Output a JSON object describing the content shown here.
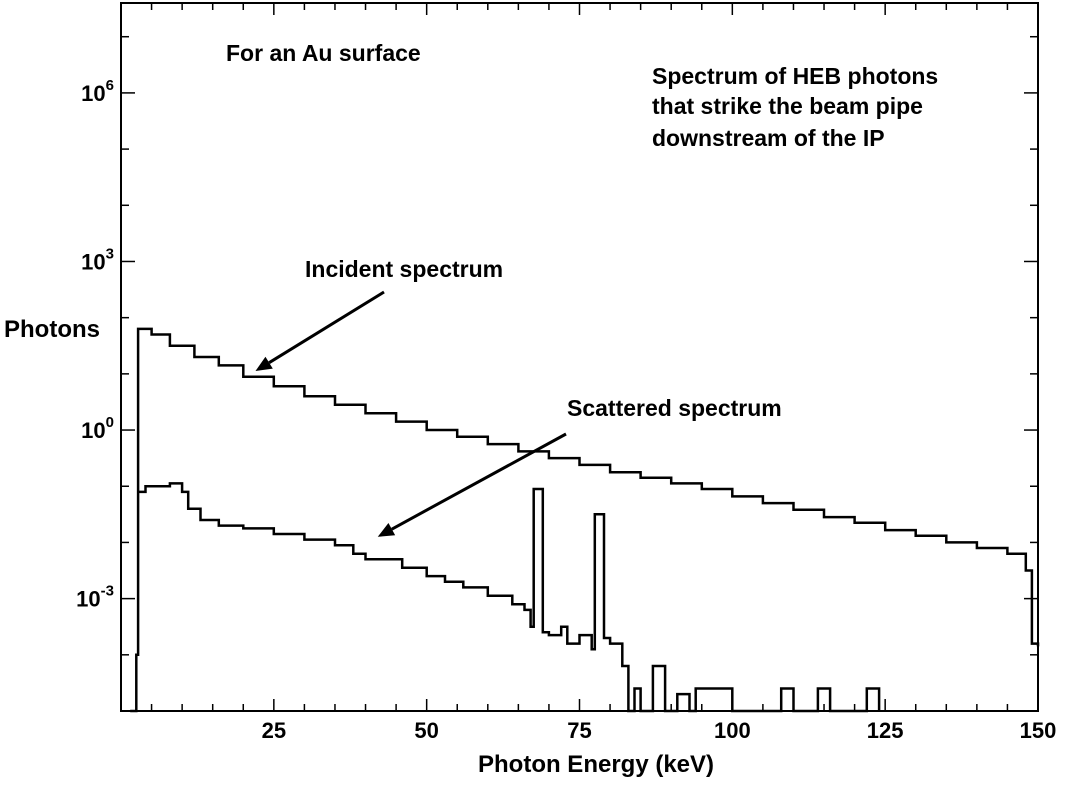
{
  "chart_data": {
    "type": "line",
    "step": true,
    "xlabel": "Photon Energy (keV)",
    "ylabel": "Photons",
    "xlim": [
      0,
      150
    ],
    "ylim_log10": [
      -5,
      7.6
    ],
    "yscale": "log",
    "grid": false,
    "x_ticks": [
      {
        "value": 25,
        "label": "25"
      },
      {
        "value": 50,
        "label": "50"
      },
      {
        "value": 75,
        "label": "75"
      },
      {
        "value": 100,
        "label": "100"
      },
      {
        "value": 125,
        "label": "125"
      },
      {
        "value": 150,
        "label": "150"
      }
    ],
    "y_ticks": [
      {
        "exp": 6,
        "base": "10",
        "sup": "6"
      },
      {
        "exp": 3,
        "base": "10",
        "sup": "3"
      },
      {
        "exp": 0,
        "base": "10",
        "sup": "0"
      },
      {
        "exp": -3,
        "base": "10",
        "sup": "-3"
      }
    ],
    "annotations": [
      {
        "text": "For an Au surface"
      },
      {
        "text": "Spectrum of HEB photons"
      },
      {
        "text": "that strike the beam pipe"
      },
      {
        "text": "downstream of the IP"
      },
      {
        "text": "Incident spectrum",
        "points_to_x": 22,
        "points_to_log10": 1.05
      },
      {
        "text": "Scattered spectrum",
        "points_to_x": 42,
        "points_to_log10": -1.9
      }
    ],
    "series": [
      {
        "points": [
          [
            1.5,
            -5
          ],
          [
            2.5,
            -4
          ],
          [
            2.8,
            1.8
          ],
          [
            5,
            1.7
          ],
          [
            8,
            1.5
          ],
          [
            12,
            1.3
          ],
          [
            16,
            1.15
          ],
          [
            20,
            0.95
          ],
          [
            25,
            0.78
          ],
          [
            30,
            0.6
          ],
          [
            35,
            0.45
          ],
          [
            40,
            0.3
          ],
          [
            45,
            0.15
          ],
          [
            50,
            0.0
          ],
          [
            55,
            -0.12
          ],
          [
            60,
            -0.25
          ],
          [
            65,
            -0.38
          ],
          [
            70,
            -0.5
          ],
          [
            75,
            -0.62
          ],
          [
            80,
            -0.75
          ],
          [
            85,
            -0.85
          ],
          [
            90,
            -0.95
          ],
          [
            95,
            -1.05
          ],
          [
            100,
            -1.18
          ],
          [
            105,
            -1.3
          ],
          [
            110,
            -1.42
          ],
          [
            115,
            -1.55
          ],
          [
            120,
            -1.65
          ],
          [
            125,
            -1.78
          ],
          [
            130,
            -1.88
          ],
          [
            135,
            -2.0
          ],
          [
            140,
            -2.1
          ],
          [
            145,
            -2.2
          ],
          [
            148,
            -2.5
          ],
          [
            149,
            -3.8
          ],
          [
            150,
            -3.85
          ]
        ]
      },
      {
        "points": [
          [
            2.8,
            -1.1
          ],
          [
            4,
            -1.0
          ],
          [
            8,
            -0.95
          ],
          [
            10,
            -1.1
          ],
          [
            11,
            -1.4
          ],
          [
            13,
            -1.6
          ],
          [
            16,
            -1.7
          ],
          [
            20,
            -1.75
          ],
          [
            25,
            -1.85
          ],
          [
            30,
            -1.95
          ],
          [
            35,
            -2.05
          ],
          [
            38,
            -2.2
          ],
          [
            40,
            -2.3
          ],
          [
            43,
            -2.3
          ],
          [
            46,
            -2.45
          ],
          [
            50,
            -2.6
          ],
          [
            53,
            -2.7
          ],
          [
            56,
            -2.8
          ],
          [
            60,
            -2.95
          ],
          [
            64,
            -3.1
          ],
          [
            66,
            -3.2
          ],
          [
            67,
            -3.5
          ],
          [
            67.5,
            -1.05
          ],
          [
            68.5,
            -1.05
          ],
          [
            69,
            -3.6
          ],
          [
            70,
            -3.65
          ],
          [
            72,
            -3.5
          ],
          [
            73,
            -3.8
          ],
          [
            75,
            -3.65
          ],
          [
            77,
            -3.9
          ],
          [
            77.5,
            -1.5
          ],
          [
            78.5,
            -1.5
          ],
          [
            79,
            -3.7
          ],
          [
            80,
            -3.8
          ],
          [
            82,
            -4.2
          ],
          [
            83,
            -5.0
          ],
          [
            84,
            -4.6
          ],
          [
            85,
            -5.0
          ],
          [
            87,
            -4.2
          ],
          [
            89,
            -5.0
          ],
          [
            90,
            -5.0
          ],
          [
            91,
            -4.7
          ],
          [
            93,
            -5.0
          ],
          [
            94,
            -4.6
          ],
          [
            99,
            -4.6
          ],
          [
            100,
            -5.0
          ],
          [
            107,
            -5.0
          ],
          [
            108,
            -4.6
          ],
          [
            110,
            -5.0
          ],
          [
            113,
            -5.0
          ],
          [
            114,
            -4.6
          ],
          [
            116,
            -5.0
          ],
          [
            121,
            -5.0
          ],
          [
            122,
            -4.6
          ],
          [
            124,
            -5.0
          ]
        ]
      }
    ]
  }
}
